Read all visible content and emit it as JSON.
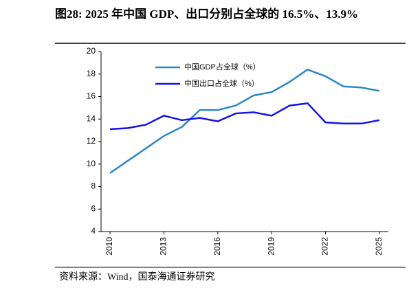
{
  "chart_data": {
    "type": "line",
    "title": "图28:  2025 年中国 GDP、出口分别占全球的 16.5%、13.9%",
    "source": "资料来源：Wind，国泰海通证券研究",
    "x": [
      2010,
      2011,
      2012,
      2013,
      2014,
      2015,
      2016,
      2017,
      2018,
      2019,
      2020,
      2021,
      2022,
      2023,
      2024,
      2025
    ],
    "series": [
      {
        "name": "中国GDP占全球（%）",
        "color": "#2b86c5",
        "values": [
          9.2,
          10.3,
          11.4,
          12.5,
          13.3,
          14.8,
          14.8,
          15.2,
          16.1,
          16.4,
          17.3,
          18.4,
          17.8,
          16.9,
          16.8,
          16.5
        ]
      },
      {
        "name": "中国出口占全球（%）",
        "color": "#1414e6",
        "values": [
          13.1,
          13.2,
          13.5,
          14.3,
          13.9,
          14.1,
          13.8,
          14.5,
          14.6,
          14.3,
          15.2,
          15.4,
          13.7,
          13.6,
          13.6,
          13.9
        ]
      }
    ],
    "xlim": [
      2009.5,
      2025.5
    ],
    "xticks": [
      2010,
      2013,
      2016,
      2019,
      2022,
      2025
    ],
    "ylim": [
      4,
      20
    ],
    "yticks": [
      4,
      6,
      8,
      10,
      12,
      14,
      16,
      18,
      20
    ],
    "grid": false,
    "legend": "upper left"
  }
}
